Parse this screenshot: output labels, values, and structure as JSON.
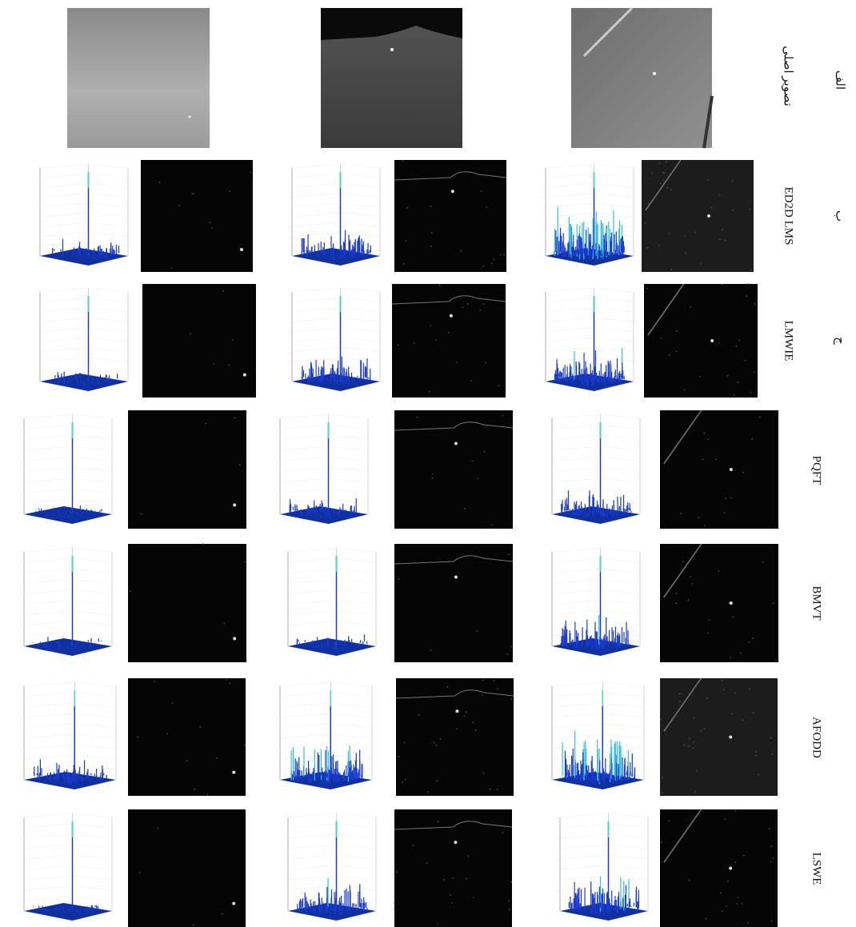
{
  "original": {
    "letter": "الف",
    "label": "تصویر اصلی"
  },
  "rows": [
    {
      "letter": "ب",
      "label": "ED2D LMS"
    },
    {
      "letter": "ج",
      "label": "LMWIE"
    },
    {
      "label": "PQFT"
    },
    {
      "label": "BMVT"
    },
    {
      "label": "AFODD"
    },
    {
      "label": "LSWE"
    }
  ]
}
